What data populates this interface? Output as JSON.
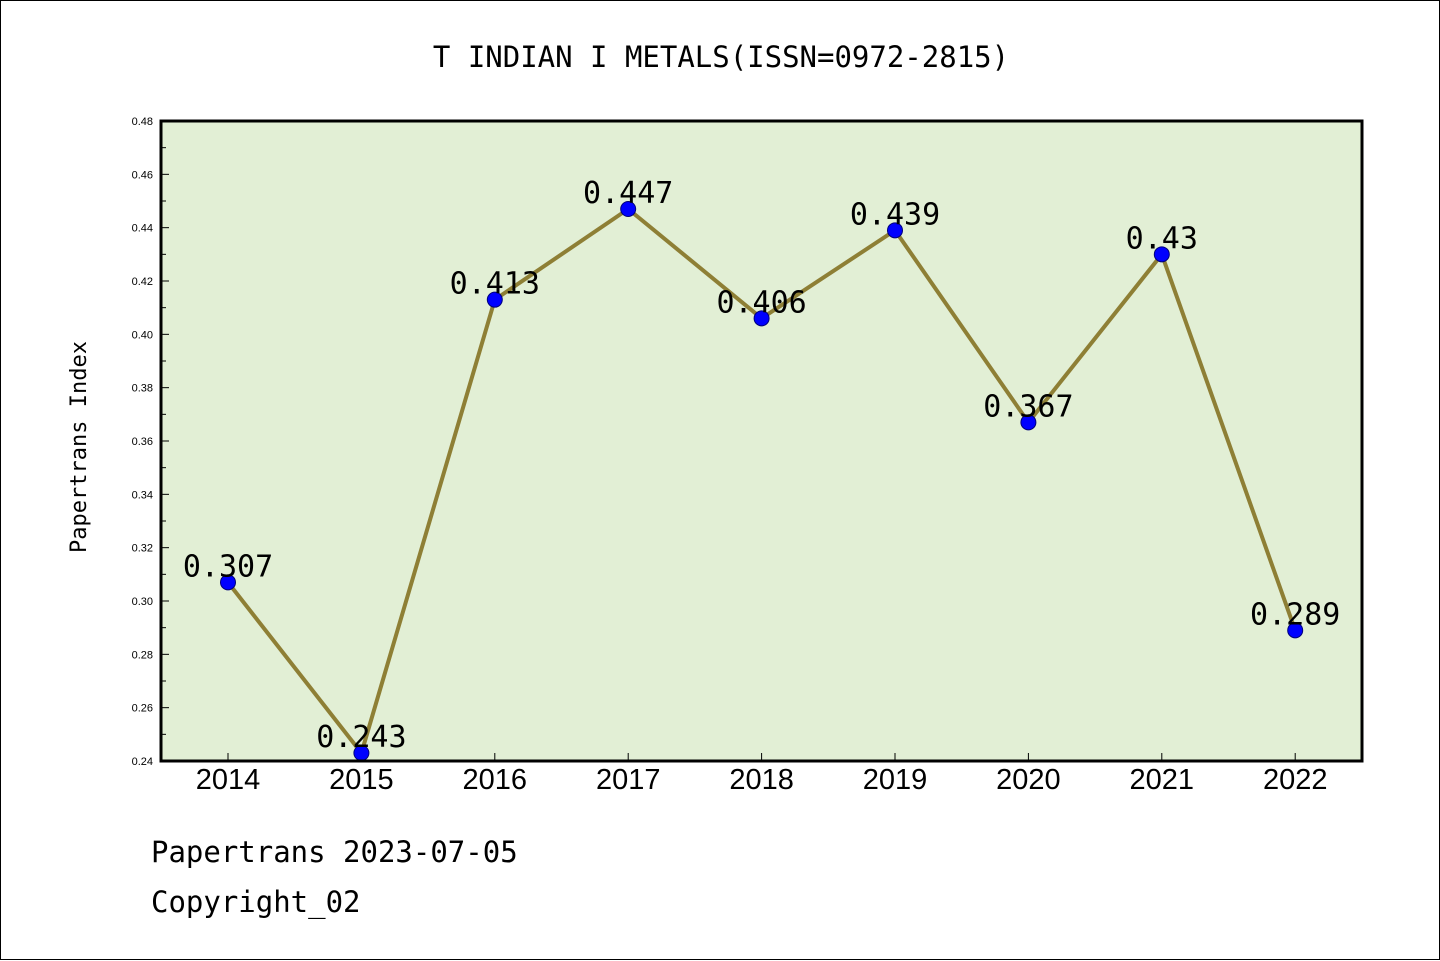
{
  "footer": {
    "line1": "Papertrans 2023-07-05",
    "line2": "Copyright_02"
  },
  "chart_data": {
    "type": "line",
    "title": "T INDIAN I METALS(ISSN=0972-2815)",
    "xlabel": "",
    "ylabel": "Papertrans Index",
    "categories": [
      "2014",
      "2015",
      "2016",
      "2017",
      "2018",
      "2019",
      "2020",
      "2021",
      "2022"
    ],
    "series": [
      {
        "values": [
          0.307,
          0.243,
          0.413,
          0.447,
          0.406,
          0.439,
          0.367,
          0.43,
          0.289
        ],
        "data_labels": [
          "0.307",
          "0.243",
          "0.413",
          "0.447",
          "0.406",
          "0.439",
          "0.367",
          "0.43",
          "0.289"
        ]
      }
    ],
    "ylim": [
      0.24,
      0.48
    ],
    "yticks": [
      "0.24",
      "0.26",
      "0.28",
      "0.30",
      "0.32",
      "0.34",
      "0.36",
      "0.38",
      "0.40",
      "0.42",
      "0.44",
      "0.46",
      "0.48"
    ],
    "grid": false,
    "legend": "none",
    "colors": {
      "plot_background": "#e2efd5",
      "line": "#8e7f35",
      "marker": "#0000ff",
      "axes": "#000000"
    }
  }
}
